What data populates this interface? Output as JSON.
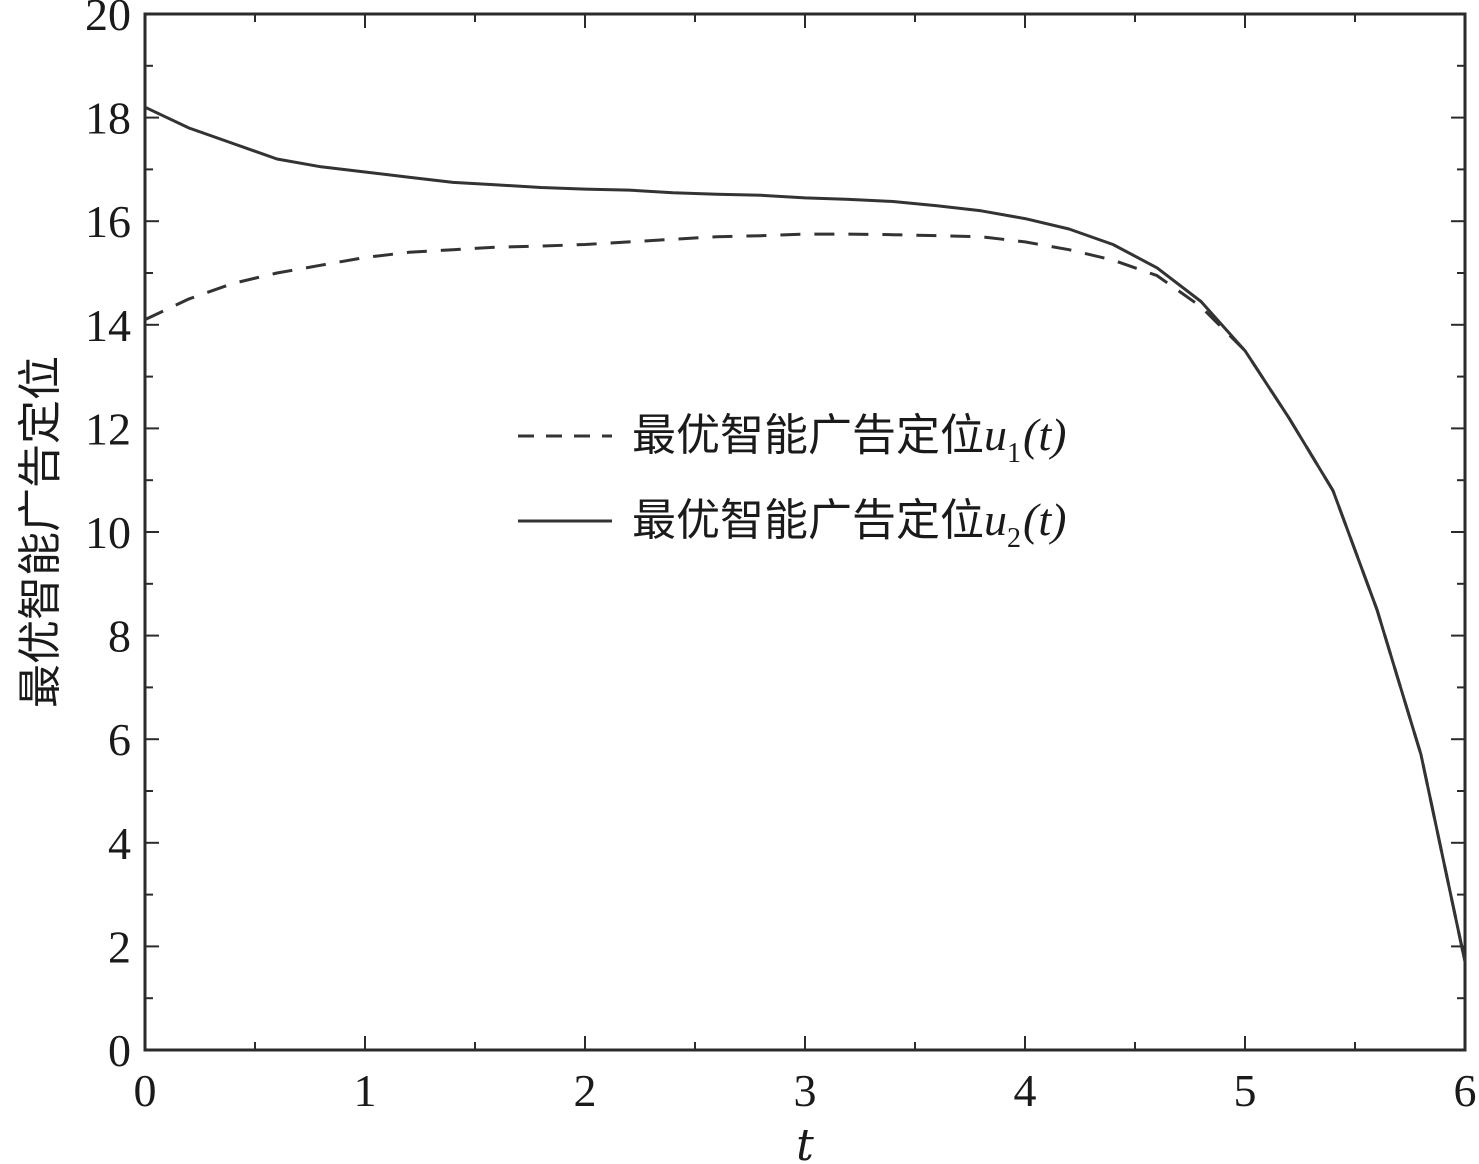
{
  "chart_data": {
    "type": "line",
    "xlabel": "t",
    "ylabel": "最优智能广告定位",
    "xlim": [
      0,
      6
    ],
    "ylim": [
      0,
      20
    ],
    "xticks": [
      0,
      1,
      2,
      3,
      4,
      5,
      6
    ],
    "yticks": [
      0,
      2,
      4,
      6,
      8,
      10,
      12,
      14,
      16,
      18,
      20
    ],
    "grid": false,
    "legend_position": "center-right",
    "series": [
      {
        "name": "最优智能广告定位u1(t)",
        "legend_text": "最优智能广告定位",
        "legend_var": "u",
        "legend_sub": "1",
        "legend_suffix": "(t)",
        "style": "dashed",
        "color": "#333333",
        "x": [
          0,
          0.2,
          0.4,
          0.6,
          0.8,
          1.0,
          1.2,
          1.4,
          1.6,
          1.8,
          2.0,
          2.2,
          2.4,
          2.6,
          2.8,
          3.0,
          3.2,
          3.4,
          3.6,
          3.8,
          4.0,
          4.2,
          4.4,
          4.6,
          4.8,
          5.0,
          5.2,
          5.4,
          5.6,
          5.8,
          6.0
        ],
        "values": [
          14.1,
          14.5,
          14.8,
          15.0,
          15.15,
          15.3,
          15.4,
          15.45,
          15.5,
          15.52,
          15.55,
          15.6,
          15.65,
          15.7,
          15.72,
          15.75,
          15.75,
          15.74,
          15.72,
          15.7,
          15.6,
          15.45,
          15.25,
          14.95,
          14.35,
          13.5,
          12.2,
          10.8,
          8.5,
          5.7,
          1.7
        ]
      },
      {
        "name": "最优智能广告定位u2(t)",
        "legend_text": "最优智能广告定位",
        "legend_var": "u",
        "legend_sub": "2",
        "legend_suffix": "(t)",
        "style": "solid",
        "color": "#333333",
        "x": [
          0,
          0.2,
          0.4,
          0.6,
          0.8,
          1.0,
          1.2,
          1.4,
          1.6,
          1.8,
          2.0,
          2.2,
          2.4,
          2.6,
          2.8,
          3.0,
          3.2,
          3.4,
          3.6,
          3.8,
          4.0,
          4.2,
          4.4,
          4.6,
          4.8,
          5.0,
          5.2,
          5.4,
          5.6,
          5.8,
          6.0
        ],
        "values": [
          18.2,
          17.8,
          17.5,
          17.2,
          17.05,
          16.95,
          16.85,
          16.75,
          16.7,
          16.65,
          16.62,
          16.6,
          16.55,
          16.52,
          16.5,
          16.45,
          16.42,
          16.38,
          16.3,
          16.2,
          16.05,
          15.85,
          15.55,
          15.1,
          14.45,
          13.5,
          12.2,
          10.8,
          8.5,
          5.7,
          1.7
        ]
      }
    ]
  }
}
